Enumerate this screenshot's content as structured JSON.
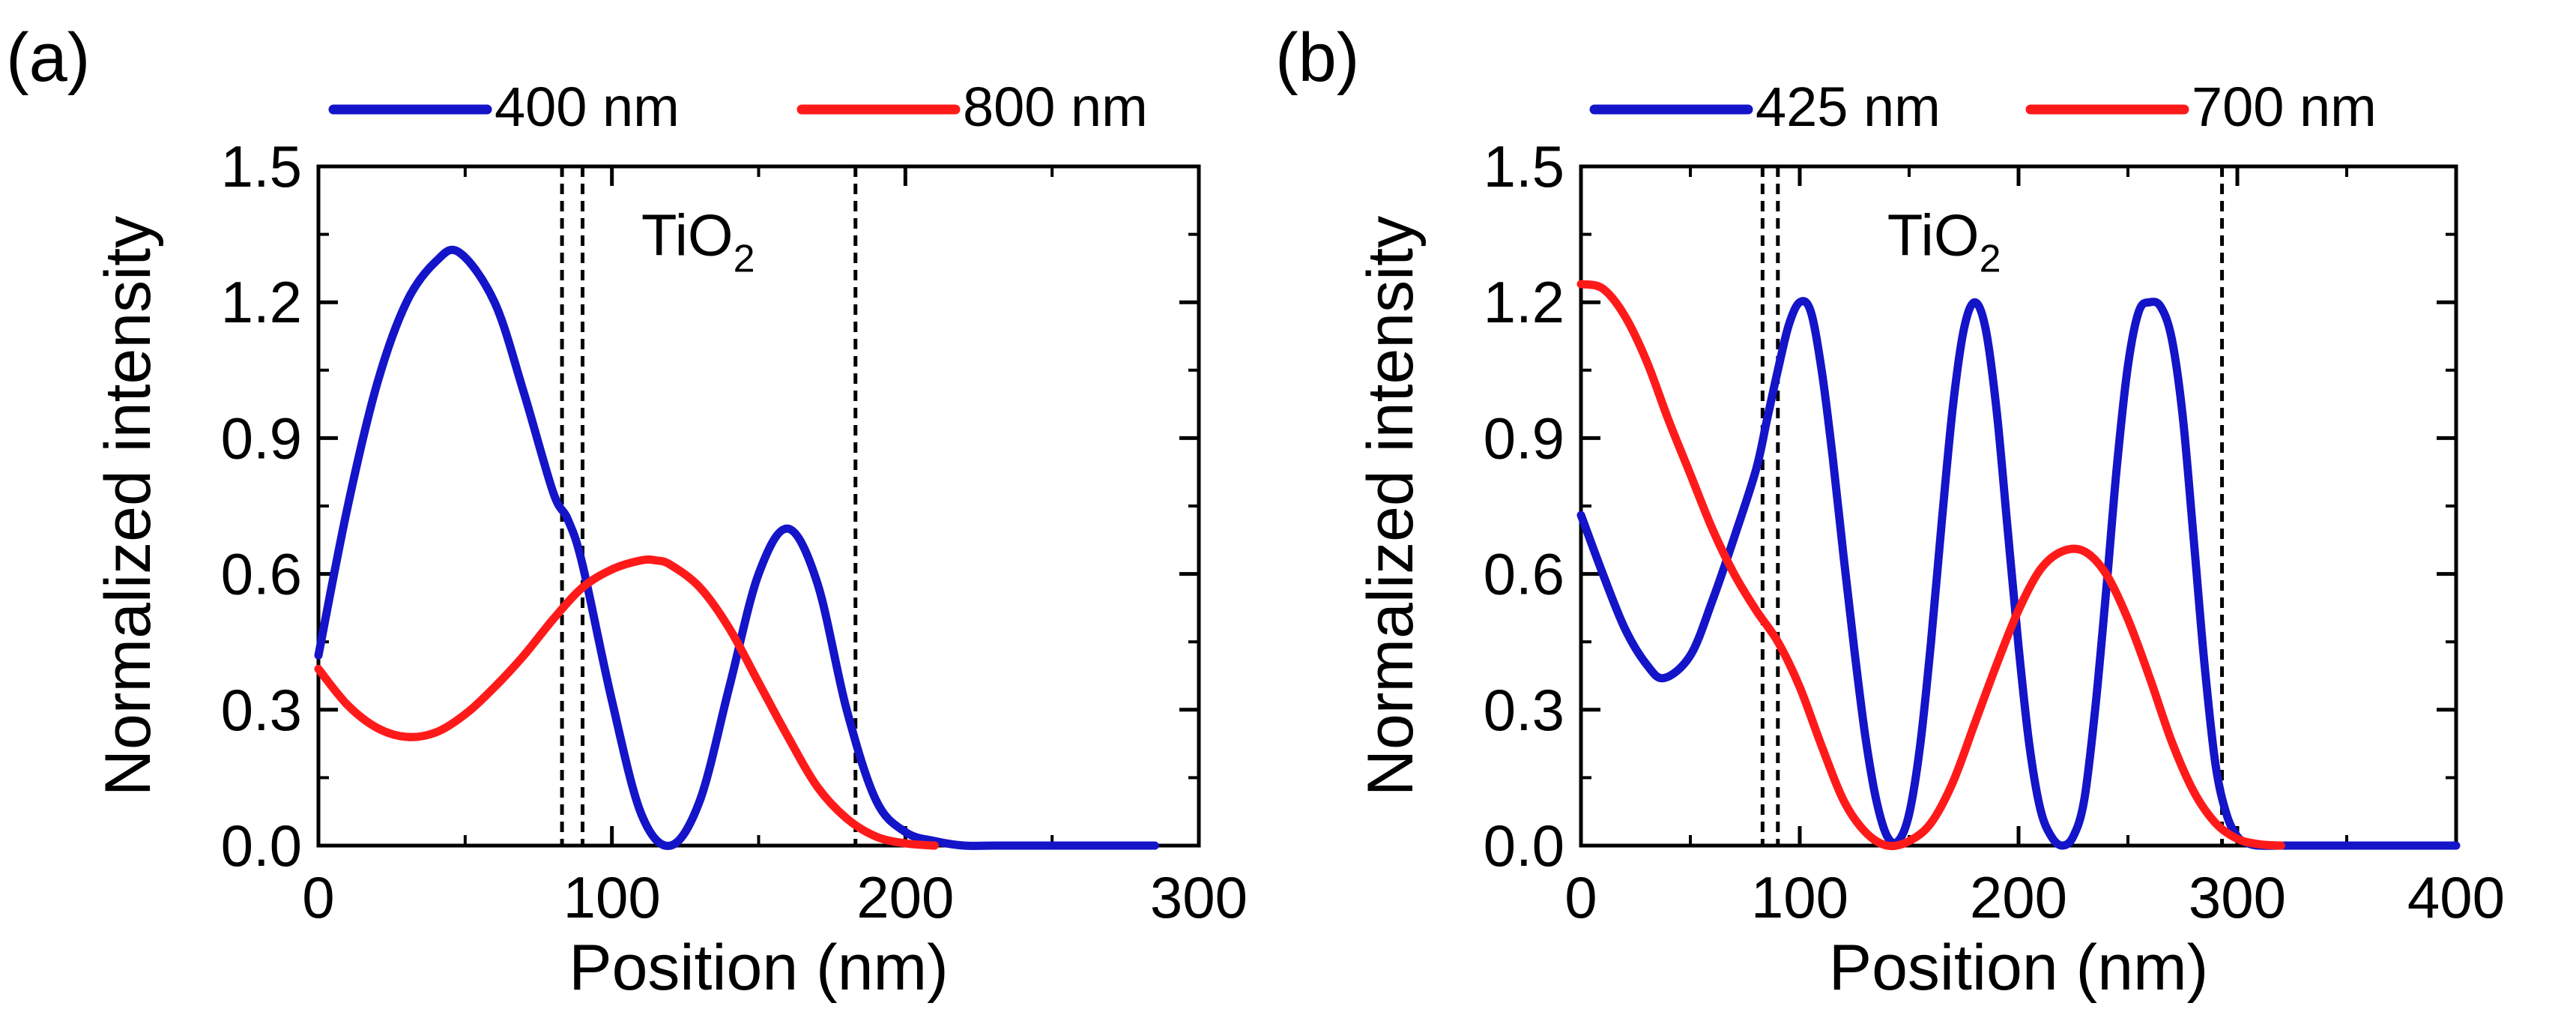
{
  "chart_data": [
    {
      "type": "line",
      "panel_label": "(a)",
      "xlabel": "Position (nm)",
      "ylabel": "Normalized intensity",
      "xlim": [
        0,
        300
      ],
      "ylim": [
        0,
        1.5
      ],
      "xticks": [
        0,
        100,
        200,
        300
      ],
      "xtick_labels": [
        "0",
        "100",
        "200",
        "300"
      ],
      "yticks": [
        0,
        0.3,
        0.6,
        0.9,
        1.2,
        1.5
      ],
      "ytick_labels": [
        "0.0",
        "0.3",
        "0.6",
        "0.9",
        "1.2",
        "1.5"
      ],
      "legend": {
        "position": "top",
        "entries": [
          "400 nm",
          "800 nm"
        ]
      },
      "region_label": {
        "text": "TiO",
        "subscript": "2",
        "x": 110,
        "y": 1.35
      },
      "dashed_lines_x": [
        83,
        90,
        183
      ],
      "series": [
        {
          "name": "400 nm",
          "color": "#1414c8",
          "x": [
            0,
            10,
            20,
            30,
            40,
            48,
            60,
            70,
            80,
            85,
            90,
            100,
            110,
            120,
            130,
            140,
            150,
            160,
            170,
            180,
            190,
            200,
            210,
            220,
            230,
            250,
            285
          ],
          "y": [
            0.42,
            0.75,
            1.02,
            1.2,
            1.29,
            1.31,
            1.2,
            1.0,
            0.78,
            0.72,
            0.62,
            0.32,
            0.07,
            0.0,
            0.1,
            0.35,
            0.6,
            0.7,
            0.58,
            0.3,
            0.1,
            0.03,
            0.01,
            0.0,
            0.0,
            0.0,
            0.0
          ]
        },
        {
          "name": "800 nm",
          "color": "#ff1a1a",
          "x": [
            0,
            10,
            20,
            30,
            40,
            50,
            60,
            70,
            80,
            90,
            100,
            110,
            115,
            120,
            130,
            140,
            150,
            160,
            170,
            180,
            190,
            200,
            210
          ],
          "y": [
            0.39,
            0.31,
            0.26,
            0.24,
            0.25,
            0.29,
            0.35,
            0.42,
            0.5,
            0.57,
            0.61,
            0.63,
            0.63,
            0.62,
            0.57,
            0.48,
            0.36,
            0.24,
            0.13,
            0.06,
            0.02,
            0.005,
            0.0
          ]
        }
      ]
    },
    {
      "type": "line",
      "panel_label": "(b)",
      "xlabel": "Position (nm)",
      "ylabel": "Normalized intensity",
      "xlim": [
        0,
        400
      ],
      "ylim": [
        0,
        1.5
      ],
      "xticks": [
        0,
        100,
        200,
        300,
        400
      ],
      "xtick_labels": [
        "0",
        "100",
        "200",
        "300",
        "400"
      ],
      "yticks": [
        0,
        0.3,
        0.6,
        0.9,
        1.2,
        1.5
      ],
      "ytick_labels": [
        "0.0",
        "0.3",
        "0.6",
        "0.9",
        "1.2",
        "1.5"
      ],
      "legend": {
        "position": "top",
        "entries": [
          "425 nm",
          "700 nm"
        ]
      },
      "region_label": {
        "text": "TiO",
        "subscript": "2",
        "x": 140,
        "y": 1.35
      },
      "dashed_lines_x": [
        83,
        90,
        293
      ],
      "series": [
        {
          "name": "425 nm",
          "color": "#1414c8",
          "x": [
            0,
            10,
            20,
            30,
            38,
            50,
            60,
            70,
            80,
            85,
            90,
            95,
            100,
            105,
            110,
            115,
            120,
            125,
            130,
            135,
            140,
            145,
            150,
            155,
            160,
            165,
            170,
            175,
            180,
            185,
            190,
            195,
            200,
            205,
            210,
            215,
            220,
            225,
            230,
            235,
            240,
            245,
            250,
            255,
            260,
            265,
            270,
            275,
            280,
            285,
            290,
            295,
            300,
            305,
            310,
            320,
            330,
            340,
            360,
            380,
            400
          ],
          "y": [
            0.73,
            0.6,
            0.48,
            0.4,
            0.37,
            0.42,
            0.54,
            0.68,
            0.83,
            0.94,
            1.05,
            1.15,
            1.2,
            1.18,
            1.05,
            0.86,
            0.64,
            0.43,
            0.24,
            0.1,
            0.02,
            0.01,
            0.07,
            0.22,
            0.45,
            0.72,
            0.97,
            1.14,
            1.2,
            1.14,
            0.96,
            0.7,
            0.44,
            0.22,
            0.08,
            0.02,
            0.0,
            0.02,
            0.1,
            0.3,
            0.56,
            0.84,
            1.06,
            1.18,
            1.2,
            1.19,
            1.12,
            0.95,
            0.68,
            0.4,
            0.18,
            0.07,
            0.02,
            0.005,
            0.0,
            0.0,
            0.0,
            0.0,
            0.0,
            0.0,
            0.0
          ]
        },
        {
          "name": "700 nm",
          "color": "#ff1a1a",
          "x": [
            0,
            10,
            20,
            30,
            40,
            50,
            60,
            70,
            80,
            90,
            100,
            110,
            120,
            130,
            140,
            150,
            160,
            170,
            180,
            190,
            200,
            210,
            220,
            230,
            240,
            250,
            260,
            270,
            280,
            290,
            300,
            310,
            320
          ],
          "y": [
            1.24,
            1.23,
            1.17,
            1.07,
            0.94,
            0.82,
            0.7,
            0.6,
            0.52,
            0.45,
            0.35,
            0.22,
            0.1,
            0.03,
            0.0,
            0.01,
            0.05,
            0.14,
            0.27,
            0.4,
            0.52,
            0.61,
            0.65,
            0.65,
            0.6,
            0.5,
            0.37,
            0.23,
            0.12,
            0.05,
            0.015,
            0.003,
            0.0
          ]
        }
      ]
    }
  ]
}
